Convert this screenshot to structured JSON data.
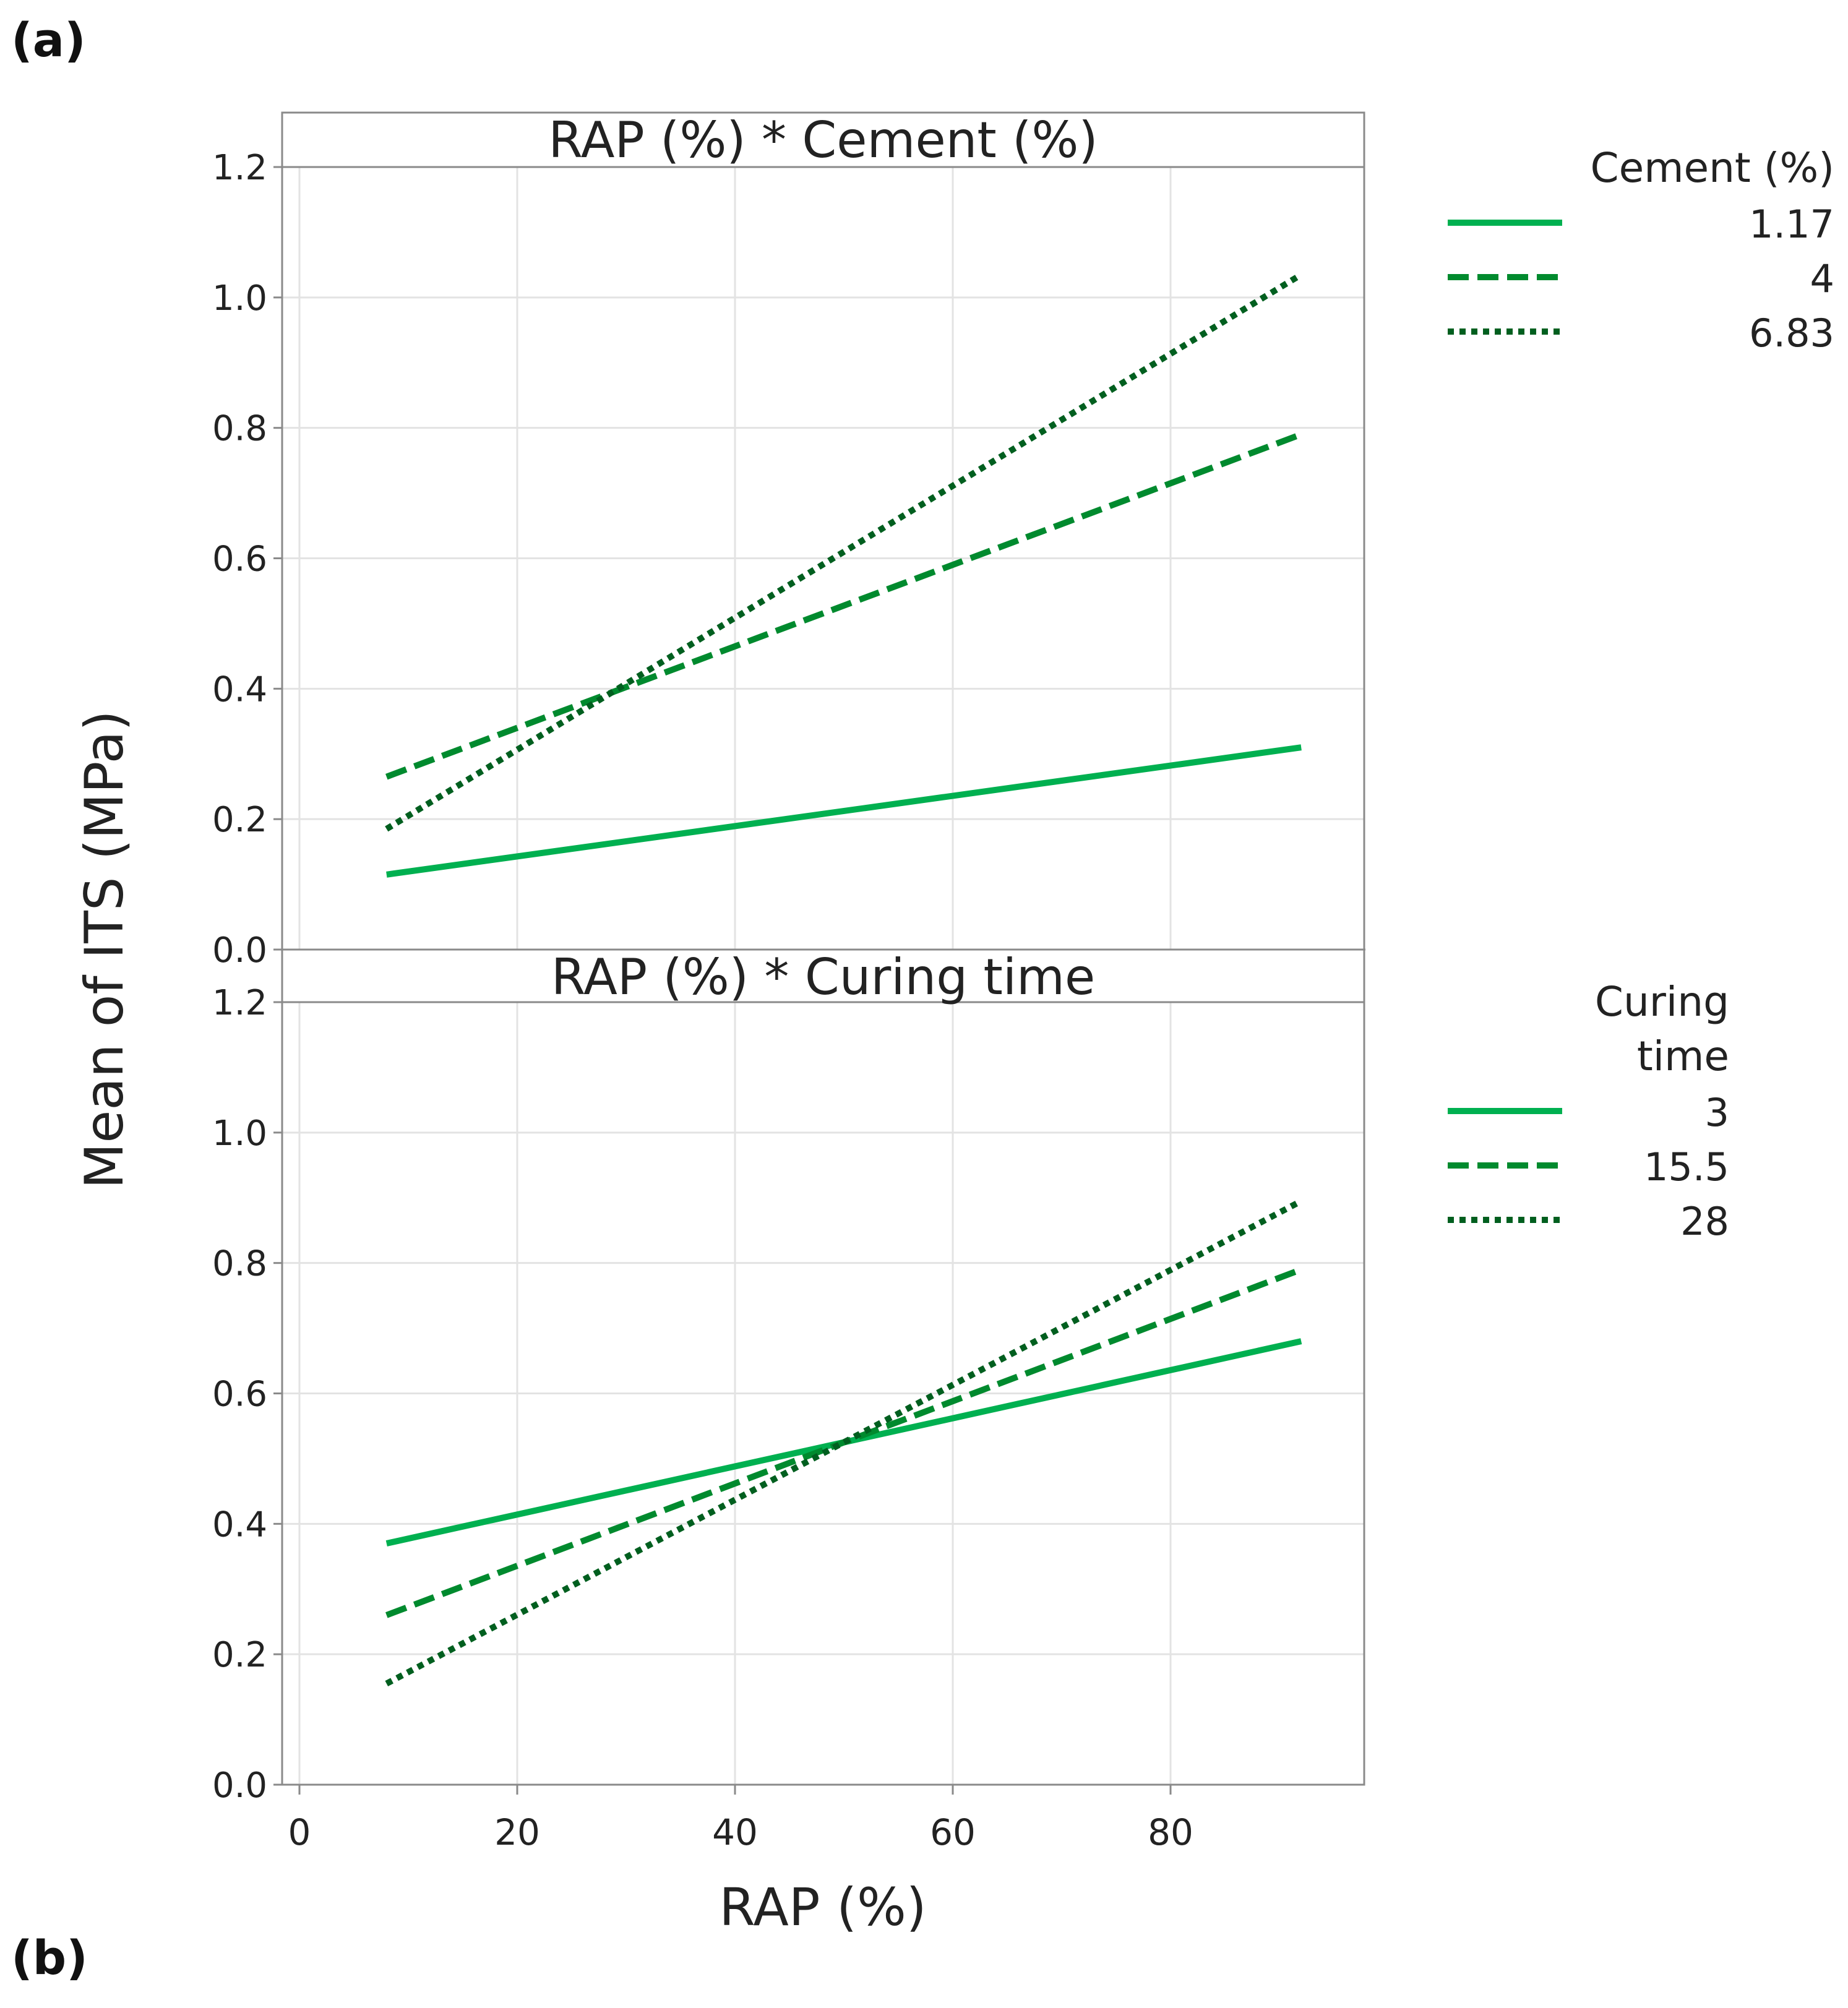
{
  "figure": {
    "panel_labels": {
      "a": "(a)",
      "b": "(b)"
    },
    "y_axis_label": "Mean of ITS (MPa)",
    "x_axis_label": "RAP (%)"
  },
  "colors": {
    "light_green": "#00b050",
    "medium_green": "#008a2e",
    "dark_green": "#005f1f",
    "grid": "#e3e3e3",
    "frame": "#8a8a8a",
    "text": "#222222"
  },
  "chart_data": [
    {
      "type": "line",
      "title": "RAP (%) * Cement (%)",
      "xlabel": "RAP (%)",
      "ylabel": "Mean of ITS (MPa)",
      "xlim": [
        -2,
        98
      ],
      "ylim": [
        0.0,
        1.2
      ],
      "x_ticks": [
        0,
        20,
        40,
        60,
        80
      ],
      "y_ticks": [
        0.0,
        0.2,
        0.4,
        0.6,
        0.8,
        1.0,
        1.2
      ],
      "y_tick_labels": [
        "0.0",
        "0.2",
        "0.4",
        "0.6",
        "0.8",
        "1.0",
        "1.2"
      ],
      "grid": true,
      "legend_title": [
        "Cement (%)"
      ],
      "series": [
        {
          "name": "1.17",
          "style": "solid",
          "color_key": "light_green",
          "x": [
            8,
            92
          ],
          "values": [
            0.115,
            0.31
          ]
        },
        {
          "name": "4",
          "style": "dashed",
          "color_key": "medium_green",
          "x": [
            8,
            92
          ],
          "values": [
            0.265,
            0.79
          ]
        },
        {
          "name": "6.83",
          "style": "dotted",
          "color_key": "dark_green",
          "x": [
            8,
            92
          ],
          "values": [
            0.185,
            1.035
          ]
        }
      ]
    },
    {
      "type": "line",
      "title": "RAP (%) * Curing time",
      "xlabel": "RAP (%)",
      "ylabel": "Mean of ITS (MPa)",
      "xlim": [
        -2,
        98
      ],
      "ylim": [
        0.0,
        1.2
      ],
      "x_ticks": [
        0,
        20,
        40,
        60,
        80
      ],
      "y_ticks": [
        0.0,
        0.2,
        0.4,
        0.6,
        0.8,
        1.0,
        1.2
      ],
      "y_tick_labels": [
        "0.0",
        "0.2",
        "0.4",
        "0.6",
        "0.8",
        "1.0",
        "1.2"
      ],
      "grid": true,
      "legend_title": [
        "Curing",
        "time"
      ],
      "series": [
        {
          "name": "3",
          "style": "solid",
          "color_key": "light_green",
          "x": [
            8,
            92
          ],
          "values": [
            0.37,
            0.68
          ]
        },
        {
          "name": "15.5",
          "style": "dashed",
          "color_key": "medium_green",
          "x": [
            8,
            92
          ],
          "values": [
            0.26,
            0.79
          ]
        },
        {
          "name": "28",
          "style": "dotted",
          "color_key": "dark_green",
          "x": [
            8,
            92
          ],
          "values": [
            0.155,
            0.895
          ]
        }
      ]
    }
  ]
}
